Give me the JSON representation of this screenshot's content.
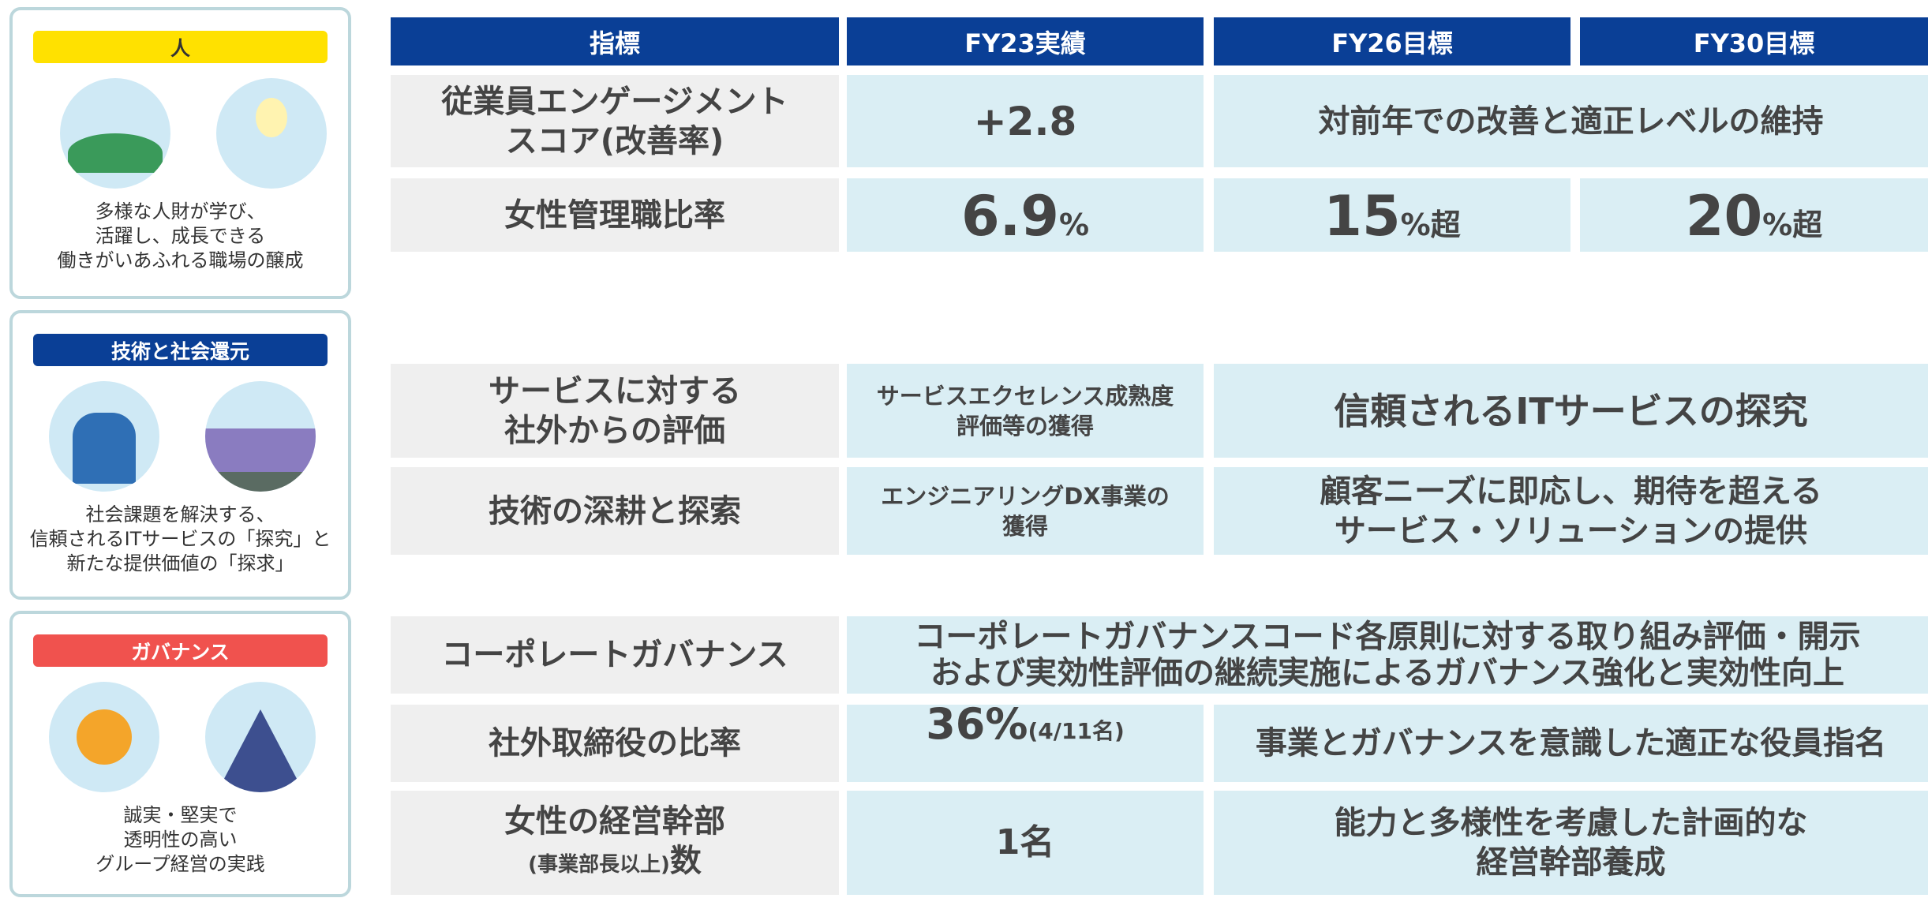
{
  "panels": [
    {
      "label": "人",
      "caption": [
        "多様な人財が学び、",
        "活躍し、成長できる",
        "働きがいあふれる職場の醸成"
      ]
    },
    {
      "label": "技術と社会還元",
      "caption": [
        "社会課題を解決する、",
        "信頼されるITサービスの「探究」と",
        "新たな提供価値の「探求」"
      ]
    },
    {
      "label": "ガバナンス",
      "caption": [
        "誠実・堅実で",
        "透明性の高い",
        "グループ経営の実践"
      ]
    }
  ],
  "table": {
    "header": [
      "指標",
      "FY23実績",
      "FY26目標",
      "FY30目標"
    ],
    "rows": [
      {
        "metric": [
          "従業員エンゲージメント",
          "スコア(改善率)"
        ],
        "fy23": "+2.8",
        "target": "対前年での改善と適正レベルの維持"
      },
      {
        "metric": [
          "女性管理職比率"
        ],
        "fy23": {
          "value": "6.9",
          "unit": "%"
        },
        "fy26": {
          "value": "15",
          "unit": "%超"
        },
        "fy30": {
          "value": "20",
          "unit": "%超"
        }
      },
      {
        "metric": [
          "サービスに対する",
          "社外からの評価"
        ],
        "fy23": [
          "サービスエクセレンス成熟度",
          "評価等の獲得"
        ],
        "target": "信頼されるITサービスの探究"
      },
      {
        "metric": [
          "技術の深耕と探索"
        ],
        "fy23": [
          "エンジニアリングDX事業の",
          "獲得"
        ],
        "target": [
          "顧客ニーズに即応し、期待を超える",
          "サービス・ソリューションの提供"
        ]
      },
      {
        "metric": [
          "コーポレートガバナンス"
        ],
        "target": [
          "コーポレートガバナンスコード各原則に対する取り組み評価・開示",
          "および実効性評価の継続実施によるガバナンス強化と実効性向上"
        ]
      },
      {
        "metric": [
          "社外取締役の比率"
        ],
        "fy23": {
          "value": "36%",
          "note": "(4/11名)"
        },
        "target": "事業とガバナンスを意識した適正な役員指名"
      },
      {
        "metric": [
          "女性の経営幹部",
          {
            "note": "(事業部長以上)",
            "text": "数"
          }
        ],
        "fy23": "1名",
        "target": [
          "能力と多様性を考慮した計画的な",
          "経営幹部養成"
        ]
      }
    ]
  }
}
